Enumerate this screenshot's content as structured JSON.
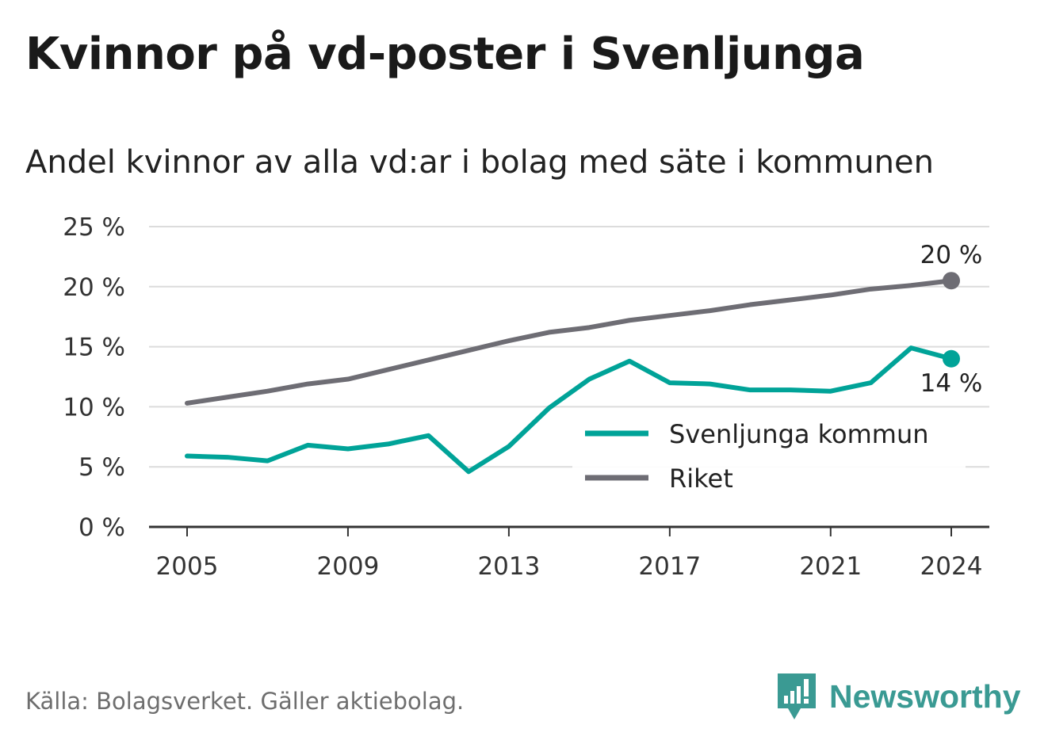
{
  "title": "Kvinnor på vd-poster i Svenljunga",
  "subtitle": "Andel kvinnor av alla vd:ar i bolag med säte i kommunen",
  "source": "Källa: Bolagsverket. Gäller aktiebolag.",
  "brand": {
    "name": "Newsworthy",
    "icon": "newsworthy-logo-icon",
    "color": "#3a9a93"
  },
  "chart_data": {
    "type": "line",
    "x": [
      2005,
      2006,
      2007,
      2008,
      2009,
      2010,
      2011,
      2012,
      2013,
      2014,
      2015,
      2016,
      2017,
      2018,
      2019,
      2020,
      2021,
      2022,
      2023,
      2024
    ],
    "x_ticks": [
      "2005",
      "2009",
      "2013",
      "2017",
      "2021",
      "2024"
    ],
    "y_ticks": [
      "0 %",
      "5 %",
      "10 %",
      "15 %",
      "20 %",
      "25 %"
    ],
    "ylim": [
      0,
      25
    ],
    "grid": true,
    "legend_position": "center-right",
    "series": [
      {
        "name": "Svenljunga kommun",
        "color": "#00a398",
        "values": [
          5.9,
          5.8,
          5.5,
          6.8,
          6.5,
          6.9,
          7.6,
          4.6,
          6.7,
          9.9,
          12.3,
          13.8,
          12.0,
          11.9,
          11.4,
          11.4,
          11.3,
          12.0,
          14.9,
          14.0
        ],
        "end_label": "14 %"
      },
      {
        "name": "Riket",
        "color": "#6e6d74",
        "values": [
          10.3,
          10.8,
          11.3,
          11.9,
          12.3,
          13.1,
          13.9,
          14.7,
          15.5,
          16.2,
          16.6,
          17.2,
          17.6,
          18.0,
          18.5,
          18.9,
          19.3,
          19.8,
          20.1,
          20.5
        ],
        "end_label": "20 %"
      }
    ]
  }
}
